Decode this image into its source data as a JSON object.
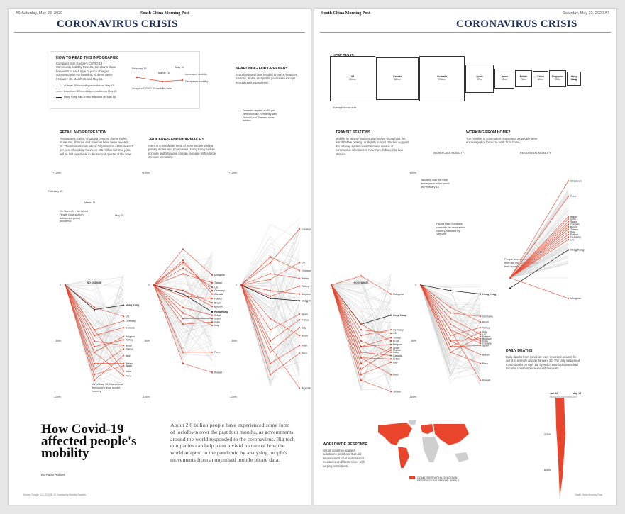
{
  "left_page": {
    "folio": "A6   Saturday, May 23, 2020",
    "masthead": "South China Morning Post",
    "kicker": "CORONAVIRUS CRISIS",
    "how_to_read": {
      "title": "HOW TO READ THIS INFOGRAPHIC",
      "body": "Compiled from Google's COVID-19 Community Mobility Reports, the charts show how visits to each type of place changed compared with the baseline, at three dates: February 15, March 15 and May 15.",
      "legend": [
        {
          "label": "At least 30% mobility reduction on May 15",
          "color": "#e8452c"
        },
        {
          "label": "Less than 30% mobility reduction on May 15",
          "color": "#bbbbbb"
        },
        {
          "label": "Hong Kong had a mild reduction on May 15",
          "color": "#222222"
        }
      ],
      "example_labels": [
        "February 15",
        "March 15",
        "May 15",
        "Increased mobility",
        "Decreased mobility",
        "Google's COVID-19 mobility data"
      ]
    },
    "sections": [
      {
        "id": "retail",
        "title": "RETAIL AND RECREATION",
        "body": "Restaurants, cafes, shopping centres, theme parks, museums, libraries and cinemas have been severely hit. The International Labour Organisation estimates 6.7 per cent of working hours, or 195 million full-time jobs, will be lost worldwide in the second quarter of the year."
      },
      {
        "id": "grocery",
        "title": "GROCERIES AND PHARMACIES",
        "body": "There is a worldwide trend of more people visiting grocery stores and pharmacies. Hong Kong had an increase and Mongolia saw an increase with a large increase in mobility."
      },
      {
        "id": "parks",
        "title": "SEARCHING FOR GREENERY",
        "body": "Scandinavians have headed to parks, beaches, marinas, stores and public gardens to escape throughout the pandemic."
      }
    ],
    "annotations": {
      "retail_feb": "February 15",
      "retail_mar": "March 11",
      "retail_may": "May 15",
      "retail_who": "On March 11, the World Health Organization declares a global pandemic",
      "retail_kuwait": "As of May 15, Kuwait was the world's least mobile country",
      "parks_denmark": "Denmark reports an 82 per cent increase in mobility with Finland and Sweden close behind.",
      "no_change": "NO CHANGE",
      "axis_top": "+100%",
      "axis_zero": "0",
      "axis_mid": "-50%",
      "axis_bottom": "-100%"
    },
    "headline": "How Covid-19 affected people's mobility",
    "standfirst": "About 2.6 billion people have experienced some form of lockdown over the past four months, as governments around the world responded to the coronavirus. Big tech companies can help paint a vivid picture of how the world adapted to the pandemic by analysing people's movements from anonymised mobile phone data.",
    "byline": "By Pablo Robles",
    "footer": "Source: Google LLC, COVID-19 Community Mobility Reports"
  },
  "right_page": {
    "folio": "Saturday, May 23, 2020   A7",
    "masthead": "South China Morning Post",
    "kicker": "CORONAVIRUS CRISIS",
    "home_size": {
      "title": "HOW BIG IS YOUR HOME?",
      "note": "Average house size",
      "boxes": [
        {
          "label": "US",
          "value": "201m²",
          "w": 62
        },
        {
          "label": "Canada",
          "value": "181m²",
          "w": 58
        },
        {
          "label": "Australia",
          "value": "214m²",
          "w": 62
        },
        {
          "label": "Spain",
          "value": "97m²",
          "w": 38
        },
        {
          "label": "Japan",
          "value": "95m²",
          "w": 26
        },
        {
          "label": "Britain",
          "value": "76m²",
          "w": 22
        },
        {
          "label": "China",
          "value": "60m²",
          "w": 20
        },
        {
          "label": "Singapore",
          "value": "93m²",
          "w": 22
        },
        {
          "label": "Hong Kong",
          "value": "45m²",
          "w": 18
        }
      ]
    },
    "sections": [
      {
        "id": "transit",
        "title": "TRANSIT STATIONS",
        "body": "Mobility in railway stations plummeted throughout the world before picking up slightly in April. Studies suggest the subway system was the major source of coronavirus infections in New York, followed by bus stations."
      },
      {
        "id": "work",
        "title": "WORKING FROM HOME?",
        "body": "The number of commuters plummeted as people were encouraged or forced to work from home."
      },
      {
        "id": "deaths",
        "title": "DAILY DEATHS",
        "body": "Daily deaths from Covid-19 were recorded around the world in a single day on January 22. The tally surpassed 5,000 deaths on April 16, by which time lockdowns had become commonplace around the world."
      },
      {
        "id": "world",
        "title": "WORLDWIDE RESPONSE",
        "body": "Not all countries applied lockdowns and those that did implemented local and national measures at different times with varying restrictions."
      }
    ],
    "annotations": {
      "workplace": "WORKPLACE MOBILITY",
      "residential": "RESIDENTIAL MOBILITY",
      "wfh_hk": "Hong Kong",
      "wfh_singapore": "Singapore",
      "wfh_mongolia": "Mongolia",
      "wfh_note": "People around the world have been far less likely to stay in their homes as at April",
      "transit_tanzania": "Tanzania was the most active place in the world on February 15",
      "transit_png": "Papua New Guinea is currently the most active country, followed by Vietnam",
      "deaths_jan": "Jan 22",
      "deaths_may": "May 15",
      "deaths_3000": "3,000",
      "deaths_6000": "6,000",
      "map_legend": "COUNTRIES WITH LOCKDOWN RESTRICTIONS BEFORE APRIL 1"
    },
    "footer": "South China Morning Post"
  },
  "chart_data": [
    {
      "type": "line",
      "title": "RETAIL AND RECREATION",
      "x": [
        "Feb 15",
        "Mar 15",
        "May 15"
      ],
      "ylim": [
        -100,
        100
      ],
      "highlight": [
        {
          "name": "Hong Kong",
          "values": [
            0,
            -22,
            -18
          ]
        },
        {
          "name": "US",
          "values": [
            0,
            -20,
            -28
          ]
        },
        {
          "name": "Germany",
          "values": [
            0,
            -40,
            -32
          ]
        },
        {
          "name": "Canada",
          "values": [
            0,
            -45,
            -38
          ]
        },
        {
          "name": "Belgium",
          "values": [
            0,
            -60,
            -46
          ]
        },
        {
          "name": "Turkey",
          "values": [
            0,
            -55,
            -49
          ]
        },
        {
          "name": "Brazil",
          "values": [
            0,
            -50,
            -54
          ]
        },
        {
          "name": "France",
          "values": [
            0,
            -75,
            -57
          ]
        },
        {
          "name": "Italy",
          "values": [
            0,
            -85,
            -63
          ]
        },
        {
          "name": "Britain",
          "values": [
            0,
            -70,
            -70
          ]
        },
        {
          "name": "Spain",
          "values": [
            0,
            -80,
            -72
          ]
        },
        {
          "name": "India",
          "values": [
            0,
            -40,
            -77
          ]
        },
        {
          "name": "Peru",
          "values": [
            0,
            -60,
            -81
          ]
        }
      ]
    },
    {
      "type": "line",
      "title": "GROCERIES AND PHARMACIES",
      "x": [
        "Feb 15",
        "Mar 15",
        "May 15"
      ],
      "ylim": [
        -100,
        100
      ],
      "highlight": [
        {
          "name": "Mongolia",
          "values": [
            0,
            32,
            9
          ]
        },
        {
          "name": "Taiwan",
          "values": [
            0,
            10,
            2
          ]
        },
        {
          "name": "US",
          "values": [
            0,
            15,
            -2
          ]
        },
        {
          "name": "Germany",
          "values": [
            0,
            20,
            -5
          ]
        },
        {
          "name": "Canada",
          "values": [
            0,
            22,
            -8
          ]
        },
        {
          "name": "France",
          "values": [
            0,
            -10,
            -12
          ]
        },
        {
          "name": "Brazil",
          "values": [
            0,
            -5,
            -16
          ]
        },
        {
          "name": "Belgium",
          "values": [
            0,
            -5,
            -19
          ]
        },
        {
          "name": "Hong Kong",
          "values": [
            0,
            -8,
            -24
          ]
        },
        {
          "name": "Britain",
          "values": [
            0,
            -20,
            -27
          ]
        },
        {
          "name": "Spain",
          "values": [
            0,
            -30,
            -30
          ]
        },
        {
          "name": "India",
          "values": [
            0,
            -35,
            -33
          ]
        },
        {
          "name": "Italy",
          "values": [
            0,
            -25,
            -36
          ]
        },
        {
          "name": "Peru",
          "values": [
            0,
            -60,
            -60
          ]
        },
        {
          "name": "Kuwait",
          "values": [
            0,
            -70,
            -78
          ]
        }
      ]
    },
    {
      "type": "line",
      "title": "SEARCHING FOR GREENERY",
      "x": [
        "Feb 15",
        "Mar 15",
        "May 15"
      ],
      "ylim": [
        -100,
        100
      ],
      "highlight": [
        {
          "name": "Canada",
          "values": [
            0,
            20,
            50
          ]
        },
        {
          "name": "US",
          "values": [
            0,
            5,
            20
          ]
        },
        {
          "name": "Germany",
          "values": [
            0,
            25,
            13
          ]
        },
        {
          "name": "Britain",
          "values": [
            0,
            10,
            6
          ]
        },
        {
          "name": "Turkey",
          "values": [
            0,
            -10,
            -1
          ]
        },
        {
          "name": "Belgium",
          "values": [
            0,
            -5,
            -8
          ]
        },
        {
          "name": "Hong Kong",
          "values": [
            0,
            -12,
            -14
          ]
        },
        {
          "name": "Spain",
          "values": [
            0,
            -40,
            -26
          ]
        },
        {
          "name": "France",
          "values": [
            0,
            -50,
            -31
          ]
        },
        {
          "name": "Italy",
          "values": [
            0,
            -60,
            -38
          ]
        },
        {
          "name": "Brazil",
          "values": [
            0,
            -30,
            -45
          ]
        },
        {
          "name": "India",
          "values": [
            0,
            -70,
            -54
          ]
        },
        {
          "name": "Peru",
          "values": [
            0,
            -80,
            -61
          ]
        },
        {
          "name": "Argentina",
          "values": [
            0,
            -55,
            -92
          ]
        }
      ]
    },
    {
      "type": "line",
      "title": "TRANSIT STATIONS",
      "x": [
        "Feb 15",
        "Mar 15",
        "May 15"
      ],
      "ylim": [
        -100,
        100
      ],
      "highlight": [
        {
          "name": "Mongolia",
          "values": [
            0,
            8,
            -8
          ]
        },
        {
          "name": "Hong Kong",
          "values": [
            0,
            -35,
            -27
          ]
        },
        {
          "name": "Germany",
          "values": [
            0,
            -45,
            -40
          ]
        },
        {
          "name": "US",
          "values": [
            0,
            -40,
            -43
          ]
        },
        {
          "name": "Turkey",
          "values": [
            0,
            -55,
            -47
          ]
        },
        {
          "name": "Brazil",
          "values": [
            0,
            -35,
            -50
          ]
        },
        {
          "name": "Belgium",
          "values": [
            0,
            -55,
            -53
          ]
        },
        {
          "name": "Spain",
          "values": [
            0,
            -70,
            -56
          ]
        },
        {
          "name": "France",
          "values": [
            0,
            -75,
            -58
          ]
        },
        {
          "name": "India",
          "values": [
            0,
            -50,
            -60
          ]
        },
        {
          "name": "Canada",
          "values": [
            0,
            -60,
            -63
          ]
        },
        {
          "name": "Britain",
          "values": [
            0,
            -65,
            -66
          ]
        },
        {
          "name": "Italy",
          "values": [
            0,
            -80,
            -69
          ]
        },
        {
          "name": "Peru",
          "values": [
            0,
            -65,
            -80
          ]
        },
        {
          "name": "Jordan",
          "values": [
            0,
            -85,
            -95
          ]
        }
      ]
    },
    {
      "type": "line",
      "title": "WORKPLACES",
      "x": [
        "Feb 15",
        "Mar 15",
        "May 15"
      ],
      "ylim": [
        -100,
        100
      ],
      "highlight": [
        {
          "name": "Hong Kong",
          "values": [
            0,
            -5,
            -8
          ]
        },
        {
          "name": "Germany",
          "values": [
            0,
            -25,
            -28
          ]
        },
        {
          "name": "Brazil",
          "values": [
            0,
            -20,
            -33
          ]
        },
        {
          "name": "Turkey",
          "values": [
            0,
            -45,
            -38
          ]
        },
        {
          "name": "Italy",
          "values": [
            0,
            -55,
            -42
          ]
        },
        {
          "name": "US",
          "values": [
            0,
            -30,
            -44
          ]
        },
        {
          "name": "France",
          "values": [
            0,
            -60,
            -46
          ]
        },
        {
          "name": "Belgium",
          "values": [
            0,
            -50,
            -48
          ]
        },
        {
          "name": "India",
          "values": [
            0,
            -35,
            -50
          ]
        },
        {
          "name": "Canada",
          "values": [
            0,
            -40,
            -52
          ]
        },
        {
          "name": "Spain",
          "values": [
            0,
            -55,
            -54
          ]
        },
        {
          "name": "Britain",
          "values": [
            0,
            -50,
            -62
          ]
        },
        {
          "name": "Peru",
          "values": [
            0,
            -60,
            -70
          ]
        },
        {
          "name": "Kuwait",
          "values": [
            0,
            -40,
            -85
          ]
        }
      ]
    },
    {
      "type": "line",
      "title": "RESIDENTIAL",
      "x": [
        "Feb 15",
        "May 15"
      ],
      "ylim": [
        -10,
        40
      ],
      "highlight": [
        {
          "name": "Singapore",
          "values": [
            0,
            38
          ]
        },
        {
          "name": "Peru",
          "values": [
            0,
            32
          ]
        },
        {
          "name": "Britain",
          "values": [
            0,
            24
          ]
        },
        {
          "name": "India",
          "values": [
            0,
            23
          ]
        },
        {
          "name": "Spain",
          "values": [
            0,
            22
          ]
        },
        {
          "name": "Canada",
          "values": [
            0,
            21
          ]
        },
        {
          "name": "Brazil",
          "values": [
            0,
            20
          ]
        },
        {
          "name": "Turkey",
          "values": [
            0,
            19
          ]
        },
        {
          "name": "Italy",
          "values": [
            0,
            18
          ]
        },
        {
          "name": "France",
          "values": [
            0,
            17
          ]
        },
        {
          "name": "Germany",
          "values": [
            0,
            16
          ]
        },
        {
          "name": "US",
          "values": [
            0,
            15
          ]
        },
        {
          "name": "Hong Kong",
          "values": [
            -4,
            11
          ]
        },
        {
          "name": "Mongolia",
          "values": [
            0,
            -8
          ]
        }
      ]
    },
    {
      "type": "area",
      "title": "DAILY DEATHS",
      "x": [
        "Jan 22",
        "May 15"
      ],
      "yticks": [
        "3,000",
        "6,000"
      ]
    }
  ]
}
